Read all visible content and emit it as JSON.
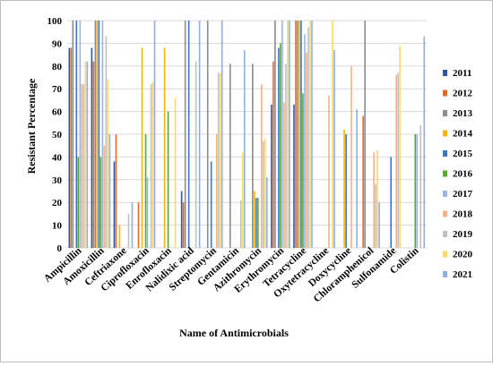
{
  "chart_data": {
    "type": "bar",
    "xlabel": "Name of Antimicrobials",
    "ylabel": "Resistant Percentage",
    "ylim": [
      0,
      100
    ],
    "yticks": [
      0,
      10,
      20,
      30,
      40,
      50,
      60,
      70,
      80,
      90,
      100
    ],
    "grid": "horizontal",
    "legend_position": "right",
    "categories": [
      "Ampicillin",
      "Amoxicillin",
      "Ceftriaxone",
      "Ciprofloxacin",
      "Enrofloxacin",
      "Nalidixic acid",
      "Streptomycin",
      "Gentamicin",
      "Azithromycin",
      "Erythromycin",
      "Tetracycline",
      "Oxytetracycline",
      "Doxycycline",
      "Chloramphenicol",
      "Sulfonamide",
      "Colistin"
    ],
    "series": [
      {
        "name": "2011",
        "color": "#2e56a6",
        "values": [
          88,
          88,
          38,
          0,
          0,
          25,
          0,
          0,
          0,
          63,
          63,
          0,
          0,
          0,
          0,
          0
        ]
      },
      {
        "name": "2012",
        "color": "#e36c24",
        "values": [
          88,
          82,
          50,
          20,
          0,
          20,
          0,
          0,
          0,
          82,
          100,
          0,
          0,
          58,
          0,
          0
        ]
      },
      {
        "name": "2013",
        "color": "#8c8c8c",
        "values": [
          100,
          100,
          0,
          0,
          0,
          100,
          100,
          81,
          81,
          100,
          100,
          0,
          0,
          100,
          0,
          0
        ]
      },
      {
        "name": "2014",
        "color": "#f2b705",
        "values": [
          0,
          100,
          10,
          88,
          88,
          0,
          0,
          0,
          25,
          0,
          100,
          0,
          52,
          0,
          0,
          0
        ]
      },
      {
        "name": "2015",
        "color": "#3a78c2",
        "values": [
          100,
          100,
          0,
          0,
          0,
          100,
          38,
          0,
          22,
          88,
          100,
          0,
          50,
          0,
          40,
          0
        ]
      },
      {
        "name": "2016",
        "color": "#5aa832",
        "values": [
          40,
          40,
          0,
          50,
          60,
          0,
          0,
          0,
          22,
          90,
          68,
          0,
          0,
          0,
          0,
          50
        ]
      },
      {
        "name": "2017",
        "color": "#9db4e0",
        "values": [
          100,
          100,
          0,
          31,
          0,
          0,
          0,
          0,
          0,
          100,
          94,
          0,
          0,
          0,
          0,
          50
        ]
      },
      {
        "name": "2018",
        "color": "#f4b183",
        "values": [
          72,
          45,
          0,
          0,
          0,
          0,
          50,
          0,
          72,
          64,
          86,
          67,
          80,
          42,
          76,
          0
        ]
      },
      {
        "name": "2019",
        "color": "#c0c0c0",
        "values": [
          72,
          93,
          15,
          72,
          0,
          82,
          77,
          21,
          47,
          81,
          97,
          0,
          0,
          28,
          77,
          54
        ]
      },
      {
        "name": "2020",
        "color": "#ffd966",
        "values": [
          82,
          74,
          0,
          73,
          66,
          0,
          77,
          42,
          48,
          100,
          100,
          100,
          0,
          43,
          89,
          0
        ]
      },
      {
        "name": "2021",
        "color": "#8fb0e0",
        "values": [
          82,
          50,
          20,
          100,
          0,
          100,
          100,
          87,
          31,
          100,
          100,
          87,
          61,
          20,
          0,
          93
        ]
      }
    ]
  }
}
